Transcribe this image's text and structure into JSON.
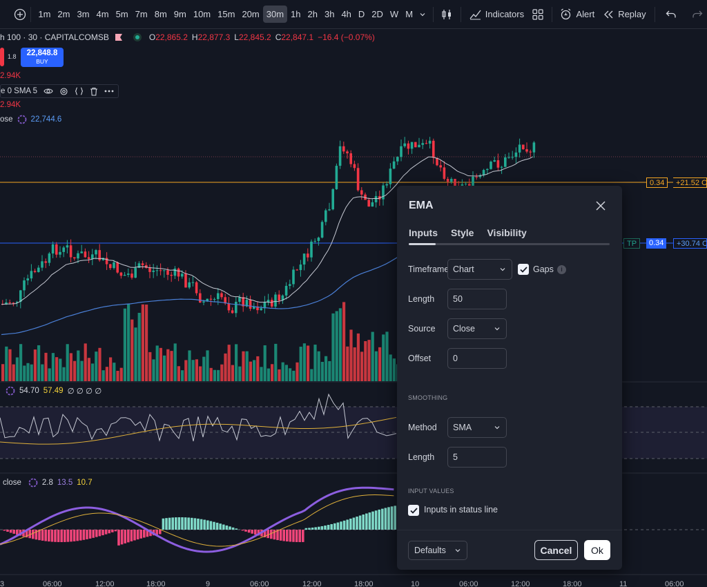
{
  "toolbar": {
    "timeframes": [
      "1m",
      "2m",
      "3m",
      "4m",
      "5m",
      "7m",
      "8m",
      "9m",
      "10m",
      "15m",
      "20m",
      "30m",
      "1h",
      "2h",
      "3h",
      "4h",
      "D",
      "2D",
      "W",
      "M"
    ],
    "active_timeframe": "30m",
    "indicators_label": "Indicators",
    "alert_label": "Alert",
    "replay_label": "Replay"
  },
  "symbol": {
    "title": "h 100 · 30 · CAPITALCOMSB",
    "o_label": "O",
    "o": "22,865.2",
    "h_label": "H",
    "h": "22,877.3",
    "l_label": "L",
    "l": "22,845.2",
    "c_label": "C",
    "c": "22,847.1",
    "change": "−16.4 (−0.07%)",
    "spread": "1.8",
    "buy_price": "22,848.8",
    "buy_label": "BUY"
  },
  "legend": {
    "vol1": "2.94K",
    "indicator_name": "e 0 SMA 5",
    "vol2": "2.94K",
    "close_label": "ose",
    "close_value": "22,744.6"
  },
  "oscillator1": {
    "v1": "54.70",
    "v2": "57.49",
    "rest": "∅ ∅ ∅ ∅"
  },
  "oscillator2": {
    "label": "close",
    "v1": "2.8",
    "v2": "13.5",
    "v3": "10.7"
  },
  "price_tags": {
    "level1_val": "0.34",
    "level1_text": "+21.52 C",
    "tp_label": "TP",
    "level2_val": "0.34",
    "level2_text": "+30.74 C"
  },
  "x_axis": [
    "3",
    "06:00",
    "12:00",
    "18:00",
    "9",
    "06:00",
    "12:00",
    "18:00",
    "10",
    "06:00",
    "12:00",
    "18:00",
    "11",
    "06:00"
  ],
  "dialog": {
    "title": "EMA",
    "tabs": [
      "Inputs",
      "Style",
      "Visibility"
    ],
    "timeframe_label": "Timeframe",
    "timeframe_value": "Chart",
    "gaps_label": "Gaps",
    "length_label": "Length",
    "length_value": "50",
    "source_label": "Source",
    "source_value": "Close",
    "offset_label": "Offset",
    "offset_value": "0",
    "smoothing_header": "SMOOTHING",
    "method_label": "Method",
    "method_value": "SMA",
    "smooth_length_label": "Length",
    "smooth_length_value": "5",
    "input_values_header": "INPUT VALUES",
    "status_line_label": "Inputs in status line",
    "defaults_label": "Defaults",
    "cancel_label": "Cancel",
    "ok_label": "Ok"
  },
  "colors": {
    "bg": "#131722",
    "up": "#22ab94",
    "down": "#f23645",
    "dialog_bg": "#1e222d",
    "accent": "#2962ff",
    "orange": "#f5a623"
  }
}
